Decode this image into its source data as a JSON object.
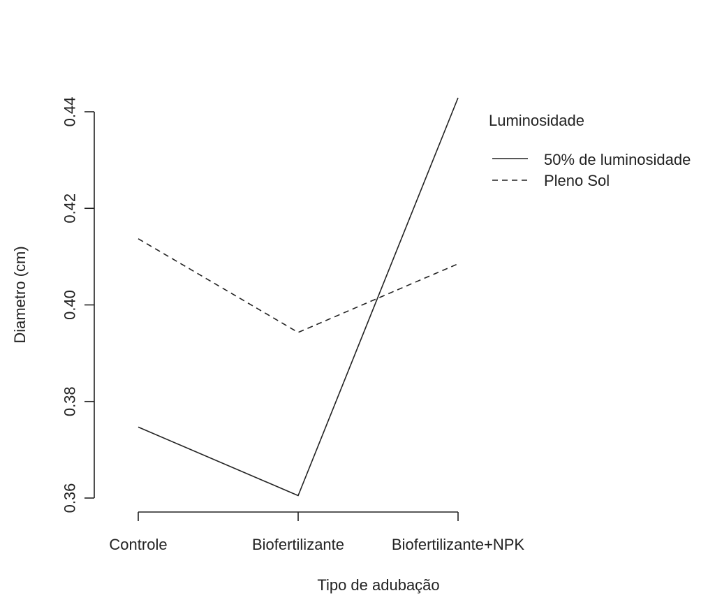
{
  "chart_data": {
    "type": "line",
    "xlabel": "Tipo de adubação",
    "ylabel": "Diametro (cm)",
    "categories": [
      "Controle",
      "Biofertilizante",
      "Biofertilizante+NPK"
    ],
    "ylim": [
      0.36,
      0.44
    ],
    "yticks": [
      "0.36",
      "0.38",
      "0.40",
      "0.42",
      "0.44"
    ],
    "grid": false,
    "legend": {
      "title": "Luminosidade",
      "position": "top-right",
      "entries": [
        "50% de luminosidade",
        "Pleno Sol"
      ]
    },
    "series": [
      {
        "name": "50% de luminosidade",
        "style": "solid",
        "color": "#222222",
        "values": [
          0.3747,
          0.3605,
          0.4429
        ]
      },
      {
        "name": "Pleno Sol",
        "style": "dashed",
        "color": "#222222",
        "values": [
          0.4137,
          0.3943,
          0.4085
        ]
      }
    ]
  }
}
